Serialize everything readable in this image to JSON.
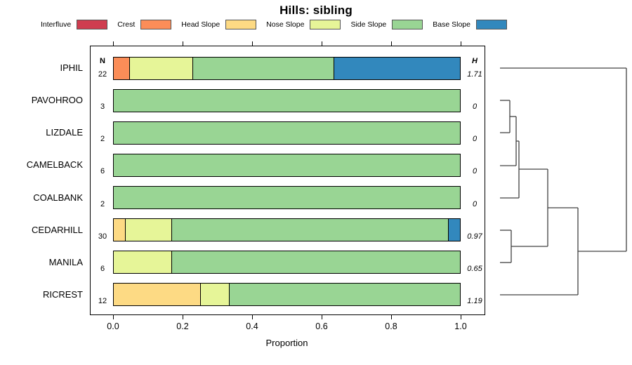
{
  "title": "Hills: sibling",
  "legend": {
    "items": [
      {
        "label": "Interfluve",
        "color": "#cf3d4f"
      },
      {
        "label": "Crest",
        "color": "#fb8d58"
      },
      {
        "label": "Head Slope",
        "color": "#fdda84"
      },
      {
        "label": "Nose Slope",
        "color": "#e6f598"
      },
      {
        "label": "Side Slope",
        "color": "#99d594"
      },
      {
        "label": "Base Slope",
        "color": "#3288bd"
      }
    ]
  },
  "columns": {
    "n_header": "N",
    "h_header": "H"
  },
  "axis": {
    "label": "Proportion",
    "ticks": [
      "0.0",
      "0.2",
      "0.4",
      "0.6",
      "0.8",
      "1.0"
    ]
  },
  "rows": [
    {
      "label": "IPHIL",
      "n": "22",
      "h": "1.71",
      "segments": [
        {
          "category": "Crest",
          "proportion": 0.0455
        },
        {
          "category": "Nose Slope",
          "proportion": 0.1818
        },
        {
          "category": "Side Slope",
          "proportion": 0.4091
        },
        {
          "category": "Base Slope",
          "proportion": 0.3636
        }
      ]
    },
    {
      "label": "PAVOHROO",
      "n": "3",
      "h": "0",
      "segments": [
        {
          "category": "Side Slope",
          "proportion": 1.0
        }
      ]
    },
    {
      "label": "LIZDALE",
      "n": "2",
      "h": "0",
      "segments": [
        {
          "category": "Side Slope",
          "proportion": 1.0
        }
      ]
    },
    {
      "label": "CAMELBACK",
      "n": "6",
      "h": "0",
      "segments": [
        {
          "category": "Side Slope",
          "proportion": 1.0
        }
      ]
    },
    {
      "label": "COALBANK",
      "n": "2",
      "h": "0",
      "segments": [
        {
          "category": "Side Slope",
          "proportion": 1.0
        }
      ]
    },
    {
      "label": "CEDARHILL",
      "n": "30",
      "h": "0.97",
      "segments": [
        {
          "category": "Head Slope",
          "proportion": 0.0333
        },
        {
          "category": "Nose Slope",
          "proportion": 0.1333
        },
        {
          "category": "Side Slope",
          "proportion": 0.8
        },
        {
          "category": "Base Slope",
          "proportion": 0.0333
        }
      ]
    },
    {
      "label": "MANILA",
      "n": "6",
      "h": "0.65",
      "segments": [
        {
          "category": "Nose Slope",
          "proportion": 0.1667
        },
        {
          "category": "Side Slope",
          "proportion": 0.8333
        }
      ]
    },
    {
      "label": "RICREST",
      "n": "12",
      "h": "1.19",
      "segments": [
        {
          "category": "Head Slope",
          "proportion": 0.25
        },
        {
          "category": "Nose Slope",
          "proportion": 0.0833
        },
        {
          "category": "Side Slope",
          "proportion": 0.6667
        }
      ]
    }
  ],
  "chart_data": {
    "type": "bar",
    "variant": "horizontal-stacked-proportion-with-dendrogram",
    "title": "Hills: sibling",
    "xlabel": "Proportion",
    "xlim": [
      0,
      1
    ],
    "xticks": [
      0.0,
      0.2,
      0.4,
      0.6,
      0.8,
      1.0
    ],
    "grid": false,
    "legend_position": "top",
    "legend_entries": [
      "Interfluve",
      "Crest",
      "Head Slope",
      "Nose Slope",
      "Side Slope",
      "Base Slope"
    ],
    "categories": [
      "IPHIL",
      "PAVOHROO",
      "LIZDALE",
      "CAMELBACK",
      "COALBANK",
      "CEDARHILL",
      "MANILA",
      "RICREST"
    ],
    "N": [
      22,
      3,
      2,
      6,
      2,
      30,
      6,
      12
    ],
    "H": [
      1.71,
      0,
      0,
      0,
      0,
      0.97,
      0.65,
      1.19
    ],
    "series": [
      {
        "name": "Interfluve",
        "values": [
          0,
          0,
          0,
          0,
          0,
          0,
          0,
          0
        ]
      },
      {
        "name": "Crest",
        "values": [
          0.0455,
          0,
          0,
          0,
          0,
          0,
          0,
          0
        ]
      },
      {
        "name": "Head Slope",
        "values": [
          0,
          0,
          0,
          0,
          0,
          0.0333,
          0,
          0.25
        ]
      },
      {
        "name": "Nose Slope",
        "values": [
          0.1818,
          0,
          0,
          0,
          0,
          0.1333,
          0.1667,
          0.0833
        ]
      },
      {
        "name": "Side Slope",
        "values": [
          0.4091,
          1,
          1,
          1,
          1,
          0.8,
          0.8333,
          0.6667
        ]
      },
      {
        "name": "Base Slope",
        "values": [
          0.3636,
          0,
          0,
          0,
          0,
          0.0333,
          0,
          0
        ]
      }
    ],
    "dendrogram": {
      "side": "right",
      "merges": [
        {
          "join": [
            "PAVOHROO",
            "LIZDALE"
          ]
        },
        {
          "join": [
            "PAVOHROO+LIZDALE",
            "CAMELBACK"
          ]
        },
        {
          "join": [
            "PAVOHROO+LIZDALE+CAMELBACK",
            "COALBANK"
          ]
        },
        {
          "join": [
            "CEDARHILL",
            "MANILA"
          ]
        },
        {
          "join": [
            "PAVOHROO+LIZDALE+CAMELBACK+COALBANK",
            "CEDARHILL+MANILA"
          ]
        },
        {
          "join": [
            "PAVOHROO+LIZDALE+CAMELBACK+COALBANK+CEDARHILL+MANILA",
            "RICREST"
          ]
        },
        {
          "join": [
            "ALL-OTHERS",
            "IPHIL"
          ]
        }
      ],
      "segments": [
        [
          12,
          37,
          192,
          37
        ],
        [
          12,
          83,
          26,
          83
        ],
        [
          12,
          129,
          26,
          129
        ],
        [
          26,
          83,
          26,
          129
        ],
        [
          26,
          106,
          35,
          106
        ],
        [
          12,
          176,
          35,
          176
        ],
        [
          35,
          106,
          35,
          176
        ],
        [
          35,
          141,
          39,
          141
        ],
        [
          12,
          222,
          39,
          222
        ],
        [
          39,
          141,
          39,
          222
        ],
        [
          39,
          181,
          80,
          181
        ],
        [
          12,
          268,
          28,
          268
        ],
        [
          12,
          314,
          28,
          314
        ],
        [
          28,
          268,
          28,
          314
        ],
        [
          28,
          291,
          80,
          291
        ],
        [
          80,
          181,
          80,
          291
        ],
        [
          80,
          236,
          123,
          236
        ],
        [
          12,
          360,
          123,
          360
        ],
        [
          123,
          236,
          123,
          360
        ],
        [
          123,
          298,
          192,
          298
        ],
        [
          192,
          37,
          192,
          298
        ]
      ]
    }
  }
}
